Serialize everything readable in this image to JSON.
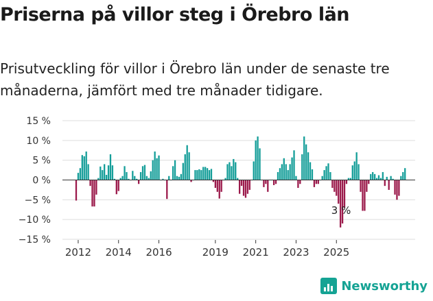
{
  "header": {
    "title": "Priserna på villor steg i Örebro län",
    "subtitle": "Prisutveckling för villor i Örebro län under de senaste tre månaderna, jämfört med tre månader tidigare."
  },
  "brand": {
    "name": "Newsworthy"
  },
  "colors": {
    "positive": "#159e99",
    "negative": "#9b1a4b",
    "grid": "#dddddd",
    "axis": "#333333"
  },
  "chart_data": {
    "type": "bar",
    "title": "Priserna på villor steg i Örebro län",
    "xlabel": "",
    "ylabel": "",
    "ylim": [
      -15,
      15
    ],
    "yticks": [
      15,
      10,
      5,
      0,
      -5,
      -10,
      -15
    ],
    "ytick_labels": [
      "15 %",
      "10 %",
      "5 %",
      "0 %",
      "−5 %",
      "−10 %",
      "−15 %"
    ],
    "xtick_labels": [
      {
        "label": "2012",
        "index": 1
      },
      {
        "label": "2014",
        "index": 21
      },
      {
        "label": "2016",
        "index": 41
      },
      {
        "label": "2019",
        "index": 69
      },
      {
        "label": "2021",
        "index": 89
      },
      {
        "label": "2023",
        "index": 109
      },
      {
        "label": "2025",
        "index": 129
      }
    ],
    "annotation": {
      "label": "3 %",
      "index": 132
    },
    "values": [
      -5.2,
      1.8,
      3,
      6.3,
      6,
      7.2,
      4,
      -1.5,
      -6.7,
      -6.7,
      -3.7,
      0.5,
      3.4,
      2.5,
      4,
      1.3,
      3.7,
      6.5,
      3.7,
      0.3,
      -3.6,
      -2.8,
      0.5,
      1,
      3.5,
      2,
      0.3,
      0,
      2.3,
      1,
      0.3,
      -1,
      2,
      3.5,
      3.8,
      1,
      0.5,
      2.2,
      5,
      7.2,
      5.5,
      6.2,
      0,
      0.3,
      0,
      -4.8,
      1,
      0,
      3.5,
      5,
      1,
      0.8,
      1.5,
      4.3,
      6.5,
      8.8,
      7,
      -0.5,
      0,
      2.5,
      2.5,
      2.7,
      2.5,
      3.3,
      3.3,
      3,
      2.5,
      2.8,
      -0.5,
      -2,
      -3,
      -4.7,
      -3,
      0,
      0.5,
      4,
      4.5,
      3.5,
      5.3,
      4.5,
      0.5,
      -3.5,
      -1.5,
      -4,
      -4.5,
      -3.5,
      -2.5,
      0,
      4.7,
      10,
      11,
      8,
      0,
      -1.8,
      -1,
      -3,
      0,
      0,
      -1.3,
      -1,
      2,
      3,
      4,
      5.5,
      4,
      2.5,
      4,
      5.7,
      7.5,
      1,
      -2,
      -1,
      6.5,
      11,
      9,
      7,
      4.5,
      2.7,
      -1.8,
      -1,
      -1,
      0,
      1,
      2.5,
      3.5,
      4.2,
      2,
      -2,
      -3,
      -4,
      -6,
      -12,
      -11,
      -7,
      -1,
      0.5,
      0.5,
      3.7,
      4.7,
      7,
      4,
      -3,
      -7.8,
      -7.8,
      -3,
      -1,
      1.5,
      2,
      1.5,
      0.5,
      1.2,
      0.5,
      2,
      -1.5,
      0.8,
      -2.5,
      1,
      0.3,
      -3.7,
      -5,
      -4,
      1,
      2,
      3
    ]
  }
}
